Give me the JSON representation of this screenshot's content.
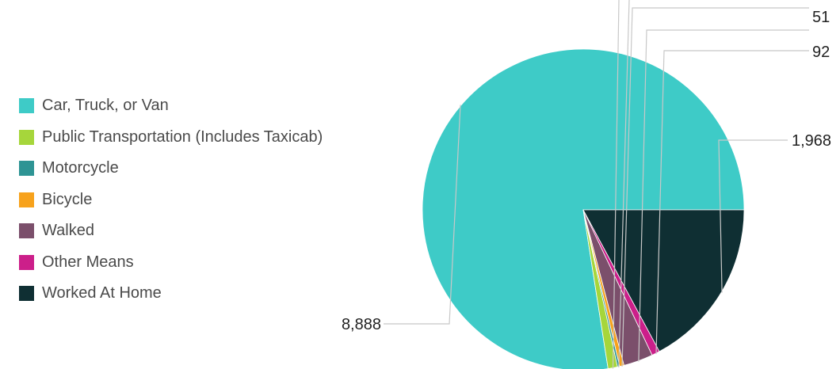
{
  "chart_data": {
    "type": "pie",
    "categories": [
      "Car, Truck, or Van",
      "Public Transportation (Includes Taxicab)",
      "Motorcycle",
      "Bicycle",
      "Walked",
      "Other Means",
      "Worked At Home"
    ],
    "values": [
      8888,
      109,
      25,
      51,
      340,
      92,
      1968
    ],
    "value_labels": [
      "8,888",
      "",
      "",
      "51",
      "",
      "92",
      "1,968"
    ],
    "colors": [
      "#3ecbc7",
      "#a6d63b",
      "#2e9494",
      "#f7a21c",
      "#7b4f6b",
      "#cc1f8a",
      "#0f2f33"
    ],
    "legend_position": "left",
    "start_angle_deg": 0,
    "direction": "counterclockwise-from-3-oclock"
  }
}
